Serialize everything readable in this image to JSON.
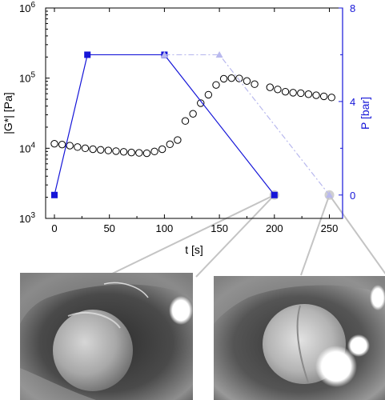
{
  "chart_data": {
    "type": "scatter",
    "title": "",
    "xlabel": "t [s]",
    "ylabel_left": "|G*| [Pa]",
    "ylabel_right": "P [bar]",
    "xlim": [
      -8,
      262
    ],
    "xticks": [
      "0",
      "50",
      "100",
      "150",
      "200",
      "250"
    ],
    "ylim_left": [
      1000,
      1000000
    ],
    "yscale_left": "log",
    "yticks_left": [
      {
        "base": "10",
        "exp": "3"
      },
      {
        "base": "10",
        "exp": "4"
      },
      {
        "base": "10",
        "exp": "5"
      },
      {
        "base": "10",
        "exp": "6"
      }
    ],
    "ylim_right": [
      -1,
      8
    ],
    "yticks_right": [
      "0",
      "4",
      "8"
    ],
    "grid": false,
    "legend": "none",
    "colors": {
      "modulus_marker": "#000000",
      "pressure": "#1515d8",
      "pressure_faded": "#b9b9ee",
      "callout": "#c4c4c4"
    },
    "series": [
      {
        "axis": "left",
        "marker": "open-circle",
        "x": [
          0,
          7,
          14,
          21,
          28,
          35,
          42,
          49,
          56,
          63,
          70,
          77,
          84,
          91,
          98,
          105,
          112,
          119,
          126,
          133,
          140,
          147,
          154,
          161,
          168,
          175,
          182,
          196,
          203,
          210,
          217,
          224,
          231,
          238,
          245,
          252
        ],
        "y": [
          11600,
          11300,
          10900,
          10400,
          10000,
          9700,
          9500,
          9300,
          9100,
          8900,
          8700,
          8600,
          8500,
          9000,
          9700,
          11400,
          13100,
          24500,
          31000,
          44000,
          58000,
          80000,
          98000,
          100000,
          99000,
          91000,
          82000,
          74000,
          69000,
          64000,
          62000,
          61000,
          59000,
          57000,
          55000,
          53000
        ]
      },
      {
        "axis": "right",
        "marker": "filled-square",
        "line": "solid",
        "x": [
          0,
          30,
          100,
          200
        ],
        "y": [
          0,
          6,
          6,
          0
        ]
      },
      {
        "axis": "right",
        "marker": "filled-triangle",
        "line": "dash-dot",
        "faded": true,
        "x": [
          100,
          150,
          250
        ],
        "y": [
          6,
          6,
          0
        ]
      }
    ],
    "callouts": [
      {
        "x": 200,
        "y": 0,
        "target": "photo-left"
      },
      {
        "x": 250,
        "y": 0,
        "target": "photo-right"
      }
    ]
  }
}
